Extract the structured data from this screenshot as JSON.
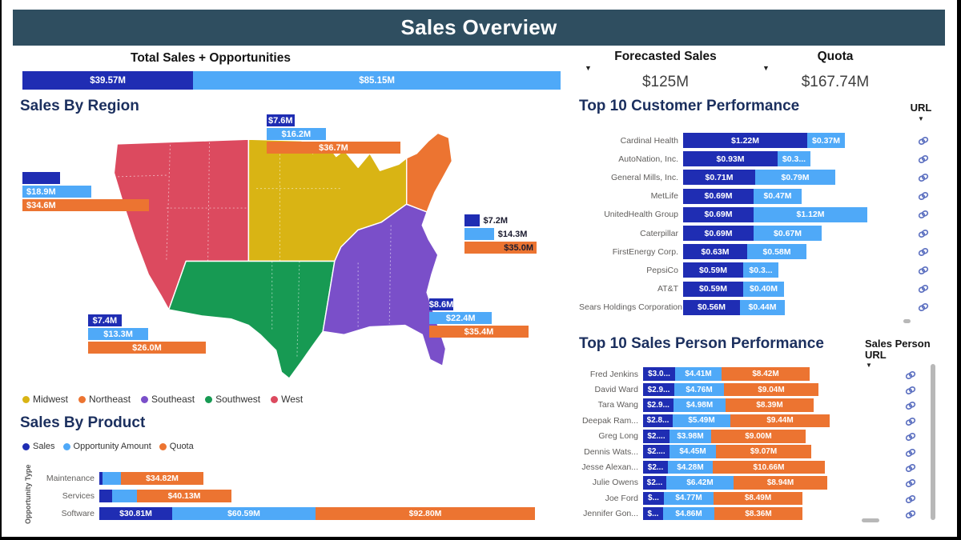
{
  "header": {
    "title": "Sales Overview"
  },
  "colors": {
    "header_bg": "#2F4E60",
    "sales": "#1F2DB3",
    "opportunity": "#4FA9F8",
    "quota": "#EC7431",
    "regions": {
      "Midwest": "#D9B414",
      "Northeast": "#EC7431",
      "Southeast": "#7A4FC9",
      "Southwest": "#179A53",
      "West": "#DC4A5F"
    },
    "link_icon": "#5B6FC0",
    "scrollbar": "#B8B8B8",
    "title_text": "#1B2F5E"
  },
  "icons": {
    "sort_indicator": "▼",
    "dropdown": "▼"
  },
  "kpis": [
    {
      "label": "Forecasted Sales",
      "value": "$125M"
    },
    {
      "label": "Quota",
      "value": "$167.74M"
    }
  ],
  "chart_data": [
    {
      "id": "total_sales_opportunities",
      "type": "bar",
      "title": "Total Sales + Opportunities",
      "units": "$M",
      "segments": [
        {
          "name": "Sales",
          "value": 39.57,
          "label": "$39.57M"
        },
        {
          "name": "Opportunity Amount",
          "value": 85.15,
          "label": "$85.15M"
        }
      ]
    },
    {
      "id": "sales_by_region",
      "type": "map-bar",
      "title": "Sales By Region",
      "units": "$M",
      "legend": [
        "Midwest",
        "Northeast",
        "Southeast",
        "Southwest",
        "West"
      ],
      "series_names": [
        "Sales",
        "Opportunity Amount",
        "Quota"
      ],
      "regions": [
        {
          "name": "Midwest",
          "bars": [
            {
              "series": "Sales",
              "value": 7.6,
              "label": "$7.6M"
            },
            {
              "series": "Opportunity Amount",
              "value": 16.2,
              "label": "$16.2M"
            },
            {
              "series": "Quota",
              "value": 36.7,
              "label": "$36.7M"
            }
          ]
        },
        {
          "name": "West",
          "bars": [
            {
              "series": "Sales",
              "value": 10.2,
              "label": ""
            },
            {
              "series": "Opportunity Amount",
              "value": 18.9,
              "label": "$18.9M"
            },
            {
              "series": "Quota",
              "value": 34.6,
              "label": "$34.6M"
            }
          ]
        },
        {
          "name": "Northeast",
          "bars": [
            {
              "series": "Sales",
              "value": 7.2,
              "label": "$7.2M"
            },
            {
              "series": "Opportunity Amount",
              "value": 14.3,
              "label": "$14.3M"
            },
            {
              "series": "Quota",
              "value": 35.0,
              "label": "$35.0M"
            }
          ]
        },
        {
          "name": "Southeast",
          "bars": [
            {
              "series": "Sales",
              "value": 8.6,
              "label": "$8.6M"
            },
            {
              "series": "Opportunity Amount",
              "value": 22.4,
              "label": "$22.4M"
            },
            {
              "series": "Quota",
              "value": 35.4,
              "label": "$35.4M"
            }
          ]
        },
        {
          "name": "Southwest",
          "bars": [
            {
              "series": "Sales",
              "value": 7.4,
              "label": "$7.4M"
            },
            {
              "series": "Opportunity Amount",
              "value": 13.3,
              "label": "$13.3M"
            },
            {
              "series": "Quota",
              "value": 26.0,
              "label": "$26.0M"
            }
          ]
        }
      ]
    },
    {
      "id": "top_customers",
      "type": "bar",
      "title": "Top 10 Customer Performance",
      "url_column": "URL",
      "units": "$M",
      "series_names": [
        "Sales",
        "Opportunity Amount"
      ],
      "rows": [
        {
          "name": "Cardinal Health",
          "sales": 1.22,
          "sales_label": "$1.22M",
          "opportunity": 0.37,
          "opportunity_label": "$0.37M"
        },
        {
          "name": "AutoNation, Inc.",
          "sales": 0.93,
          "sales_label": "$0.93M",
          "opportunity": 0.32,
          "opportunity_label": "$0.3..."
        },
        {
          "name": "General Mills, Inc.",
          "sales": 0.71,
          "sales_label": "$0.71M",
          "opportunity": 0.79,
          "opportunity_label": "$0.79M"
        },
        {
          "name": "MetLife",
          "sales": 0.69,
          "sales_label": "$0.69M",
          "opportunity": 0.47,
          "opportunity_label": "$0.47M"
        },
        {
          "name": "UnitedHealth Group",
          "sales": 0.69,
          "sales_label": "$0.69M",
          "opportunity": 1.12,
          "opportunity_label": "$1.12M"
        },
        {
          "name": "Caterpillar",
          "sales": 0.69,
          "sales_label": "$0.69M",
          "opportunity": 0.67,
          "opportunity_label": "$0.67M"
        },
        {
          "name": "FirstEnergy Corp.",
          "sales": 0.63,
          "sales_label": "$0.63M",
          "opportunity": 0.58,
          "opportunity_label": "$0.58M"
        },
        {
          "name": "PepsiCo",
          "sales": 0.59,
          "sales_label": "$0.59M",
          "opportunity": 0.35,
          "opportunity_label": "$0.3..."
        },
        {
          "name": "AT&T",
          "sales": 0.59,
          "sales_label": "$0.59M",
          "opportunity": 0.4,
          "opportunity_label": "$0.40M"
        },
        {
          "name": "Sears Holdings Corporation",
          "sales": 0.56,
          "sales_label": "$0.56M",
          "opportunity": 0.44,
          "opportunity_label": "$0.44M"
        }
      ]
    },
    {
      "id": "top_salespersons",
      "type": "bar",
      "title": "Top 10 Sales Person Performance",
      "url_column": "Sales Person URL",
      "units": "$M",
      "series_names": [
        "Sales",
        "Opportunity Amount",
        "Quota"
      ],
      "rows": [
        {
          "name": "Fred Jenkins",
          "sales": 3.05,
          "sales_label": "$3.0...",
          "opportunity": 4.41,
          "opportunity_label": "$4.41M",
          "quota": 8.42,
          "quota_label": "$8.42M"
        },
        {
          "name": "David Ward",
          "sales": 2.95,
          "sales_label": "$2.9...",
          "opportunity": 4.76,
          "opportunity_label": "$4.76M",
          "quota": 9.04,
          "quota_label": "$9.04M"
        },
        {
          "name": "Tara Wang",
          "sales": 2.92,
          "sales_label": "$2.9...",
          "opportunity": 4.98,
          "opportunity_label": "$4.98M",
          "quota": 8.39,
          "quota_label": "$8.39M"
        },
        {
          "name": "Deepak Ram...",
          "sales": 2.85,
          "sales_label": "$2.8...",
          "opportunity": 5.49,
          "opportunity_label": "$5.49M",
          "quota": 9.44,
          "quota_label": "$9.44M"
        },
        {
          "name": "Greg Long",
          "sales": 2.55,
          "sales_label": "$2....",
          "opportunity": 3.98,
          "opportunity_label": "$3.98M",
          "quota": 9.0,
          "quota_label": "$9.00M"
        },
        {
          "name": "Dennis Wats...",
          "sales": 2.55,
          "sales_label": "$2....",
          "opportunity": 4.45,
          "opportunity_label": "$4.45M",
          "quota": 9.07,
          "quota_label": "$9.07M"
        },
        {
          "name": "Jesse Alexan...",
          "sales": 2.35,
          "sales_label": "$2...",
          "opportunity": 4.28,
          "opportunity_label": "$4.28M",
          "quota": 10.66,
          "quota_label": "$10.66M"
        },
        {
          "name": "Julie Owens",
          "sales": 2.25,
          "sales_label": "$2...",
          "opportunity": 6.42,
          "opportunity_label": "$6.42M",
          "quota": 8.94,
          "quota_label": "$8.94M"
        },
        {
          "name": "Joe Ford",
          "sales": 1.95,
          "sales_label": "$...",
          "opportunity": 4.77,
          "opportunity_label": "$4.77M",
          "quota": 8.49,
          "quota_label": "$8.49M"
        },
        {
          "name": "Jennifer Gon...",
          "sales": 1.9,
          "sales_label": "$...",
          "opportunity": 4.86,
          "opportunity_label": "$4.86M",
          "quota": 8.36,
          "quota_label": "$8.36M"
        }
      ]
    },
    {
      "id": "sales_by_product",
      "type": "bar",
      "title": "Sales By Product",
      "axis_label": "Opportunity Type",
      "units": "$M",
      "legend": [
        "Sales",
        "Opportunity Amount",
        "Quota"
      ],
      "rows": [
        {
          "name": "Maintenance",
          "sales": 1.2,
          "sales_label": "",
          "opportunity": 7.8,
          "opportunity_label": "",
          "quota": 34.82,
          "quota_label": "$34.82M"
        },
        {
          "name": "Services",
          "sales": 5.4,
          "sales_label": "",
          "opportunity": 10.4,
          "opportunity_label": "",
          "quota": 40.13,
          "quota_label": "$40.13M"
        },
        {
          "name": "Software",
          "sales": 30.81,
          "sales_label": "$30.81M",
          "opportunity": 60.59,
          "opportunity_label": "$60.59M",
          "quota": 92.8,
          "quota_label": "$92.80M"
        }
      ]
    }
  ]
}
